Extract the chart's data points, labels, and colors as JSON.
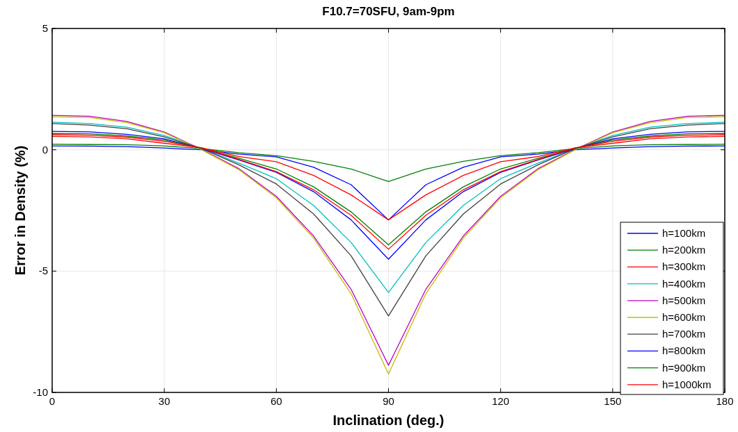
{
  "chart_data": {
    "type": "line",
    "title": "F10.7=70SFU, 9am-9pm",
    "xlabel": "Inclination (deg.)",
    "ylabel": "Error in Density (%)",
    "x": [
      0,
      10,
      20,
      30,
      40,
      50,
      60,
      70,
      80,
      90,
      100,
      110,
      120,
      130,
      140,
      150,
      160,
      170,
      180
    ],
    "xlim": [
      0,
      180
    ],
    "xticks": [
      0,
      30,
      60,
      90,
      120,
      150,
      180
    ],
    "ylim": [
      -10,
      5
    ],
    "yticks": [
      -10,
      -5,
      0,
      5
    ],
    "grid": true,
    "legend": "bottom right",
    "series": [
      {
        "name": "h=100km",
        "color": "#0000ff",
        "values": [
          0.16,
          0.15,
          0.13,
          0.07,
          0.0,
          -0.18,
          -0.29,
          -0.72,
          -1.44,
          -2.89,
          -1.44,
          -0.72,
          -0.29,
          -0.18,
          0.0,
          0.07,
          0.13,
          0.15,
          0.16
        ]
      },
      {
        "name": "h=200km",
        "color": "#008000",
        "values": [
          0.23,
          0.22,
          0.21,
          0.16,
          0.05,
          -0.12,
          -0.24,
          -0.48,
          -0.79,
          -1.31,
          -0.79,
          -0.48,
          -0.24,
          -0.12,
          0.05,
          0.16,
          0.21,
          0.22,
          0.23
        ]
      },
      {
        "name": "h=300km",
        "color": "#ff0000",
        "values": [
          0.55,
          0.53,
          0.45,
          0.27,
          0.08,
          -0.28,
          -0.49,
          -1.06,
          -1.86,
          -2.89,
          -1.86,
          -1.06,
          -0.49,
          -0.28,
          0.08,
          0.27,
          0.45,
          0.53,
          0.55
        ]
      },
      {
        "name": "h=400km",
        "color": "#00bfbf",
        "values": [
          1.14,
          1.08,
          0.93,
          0.59,
          0.05,
          -0.55,
          -1.19,
          -2.3,
          -3.82,
          -5.88,
          -3.82,
          -2.3,
          -1.19,
          -0.55,
          0.05,
          0.59,
          0.93,
          1.08,
          1.14
        ]
      },
      {
        "name": "h=500km",
        "color": "#bf00bf",
        "values": [
          1.42,
          1.38,
          1.17,
          0.73,
          0.02,
          -0.78,
          -1.92,
          -3.56,
          -5.75,
          -8.88,
          -5.75,
          -3.56,
          -1.92,
          -0.78,
          0.02,
          0.73,
          1.17,
          1.38,
          1.42
        ]
      },
      {
        "name": "h=600km",
        "color": "#bfbf00",
        "values": [
          1.36,
          1.33,
          1.12,
          0.7,
          0.0,
          -0.82,
          -1.98,
          -3.65,
          -5.93,
          -9.24,
          -5.93,
          -3.65,
          -1.98,
          -0.82,
          0.0,
          0.7,
          1.12,
          1.33,
          1.36
        ]
      },
      {
        "name": "h=700km",
        "color": "#404040",
        "values": [
          1.08,
          1.02,
          0.87,
          0.53,
          0.05,
          -0.62,
          -1.41,
          -2.65,
          -4.37,
          -6.85,
          -4.37,
          -2.65,
          -1.41,
          -0.62,
          0.05,
          0.53,
          0.87,
          1.02,
          1.08
        ]
      },
      {
        "name": "h=800km",
        "color": "#0000ff",
        "values": [
          0.76,
          0.74,
          0.64,
          0.45,
          0.05,
          -0.42,
          -0.93,
          -1.73,
          -2.89,
          -4.51,
          -2.89,
          -1.73,
          -0.93,
          -0.42,
          0.05,
          0.45,
          0.64,
          0.74,
          0.76
        ]
      },
      {
        "name": "h=900km",
        "color": "#008000",
        "values": [
          0.67,
          0.66,
          0.57,
          0.4,
          0.06,
          -0.35,
          -0.79,
          -1.53,
          -2.56,
          -3.92,
          -2.56,
          -1.53,
          -0.79,
          -0.35,
          0.06,
          0.4,
          0.57,
          0.66,
          0.67
        ]
      },
      {
        "name": "h=1000km",
        "color": "#ff0000",
        "values": [
          0.62,
          0.6,
          0.52,
          0.35,
          0.08,
          -0.4,
          -0.9,
          -1.65,
          -2.7,
          -4.1,
          -2.7,
          -1.65,
          -0.9,
          -0.4,
          0.08,
          0.35,
          0.52,
          0.6,
          0.62
        ]
      }
    ]
  }
}
